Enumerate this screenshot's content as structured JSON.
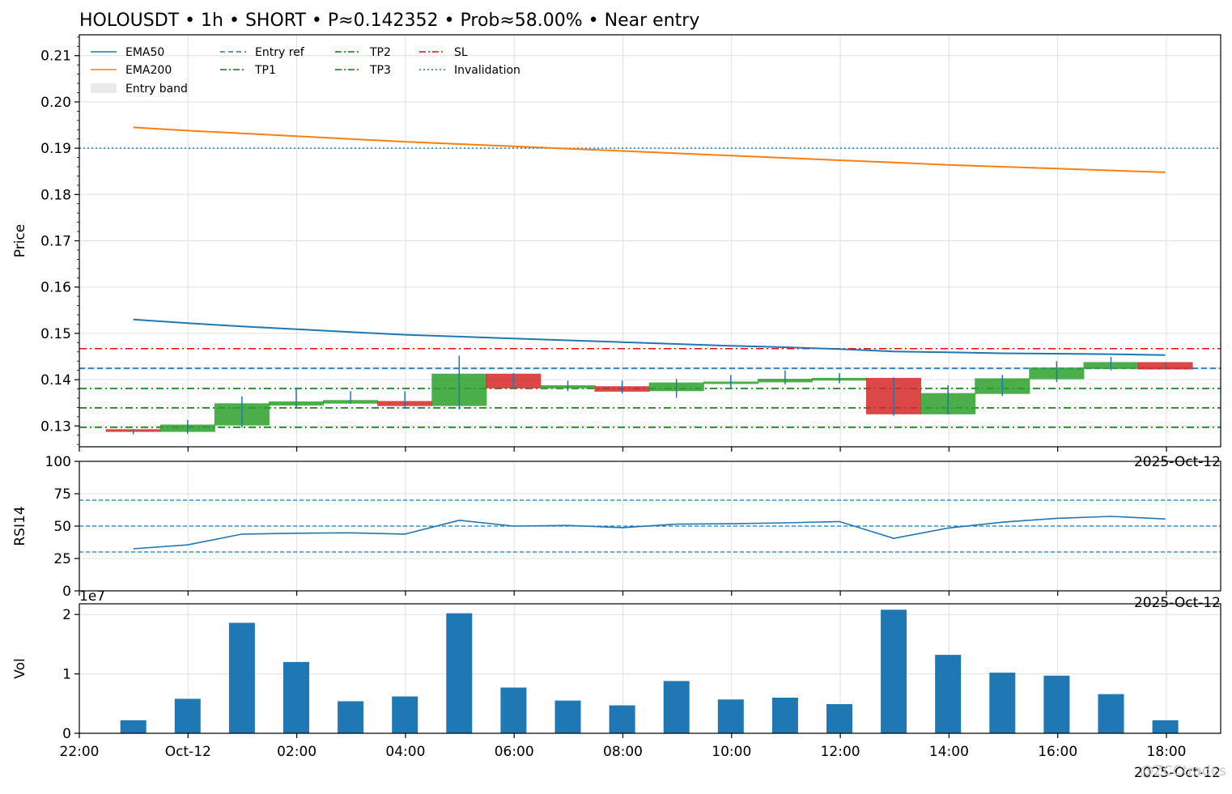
{
  "title": "HOLOUSDT • 1h • SHORT • P≈0.142352 • Prob≈58.00% • Near entry",
  "watermark": "@ZCCtrades",
  "colors": {
    "ema50": "#1f77b4",
    "ema200": "#ff7f0e",
    "up": "#2ca02c",
    "down": "#d62728",
    "entry": "#1f77b4",
    "tp": "#008000",
    "sl": "#ff0000",
    "band": "#d8d8d8",
    "vol": "#1f77b4",
    "rsi": "#1f77b4",
    "grid": "#e0e0e0"
  },
  "chart_data": [
    {
      "type": "candlestick",
      "ylabel": "Price",
      "ylim": [
        0.1255,
        0.2145
      ],
      "yticks": [
        "0.21",
        "0.20",
        "0.19",
        "0.18",
        "0.17",
        "0.16",
        "0.15",
        "0.14",
        "0.13"
      ],
      "ytick_values": [
        0.21,
        0.2,
        0.19,
        0.18,
        0.17,
        0.16,
        0.15,
        0.14,
        0.13
      ],
      "corner_label": "2025-Oct-12",
      "legend": [
        {
          "label": "EMA50",
          "style": "solid",
          "color": "#1f77b4"
        },
        {
          "label": "Entry ref",
          "style": "dashed",
          "color": "#1f77b4"
        },
        {
          "label": "TP2",
          "style": "dashdot",
          "color": "#008000"
        },
        {
          "label": "SL",
          "style": "dashdot",
          "color": "#ff0000"
        },
        {
          "label": "EMA200",
          "style": "solid",
          "color": "#ff7f0e"
        },
        {
          "label": "TP1",
          "style": "dashdot",
          "color": "#008000"
        },
        {
          "label": "TP3",
          "style": "dashdot",
          "color": "#008000"
        },
        {
          "label": "Invalidation",
          "style": "dotted",
          "color": "#1f77b4"
        },
        {
          "label": "Entry band",
          "style": "band",
          "color": "#d8d8d8"
        }
      ],
      "levels": {
        "entry_ref": 0.14245,
        "entry_band": [
          0.1421,
          0.1428
        ],
        "sl": 0.1467,
        "tp1": 0.1381,
        "tp2": 0.1339,
        "tp3": 0.1297,
        "invalidation": 0.19
      },
      "candles": [
        {
          "t": "23:00",
          "open": 0.1292,
          "high": 0.1293,
          "low": 0.1282,
          "close": 0.1288
        },
        {
          "t": "00:00",
          "open": 0.1288,
          "high": 0.1313,
          "low": 0.1283,
          "close": 0.1302
        },
        {
          "t": "01:00",
          "open": 0.1302,
          "high": 0.1364,
          "low": 0.1297,
          "close": 0.1348
        },
        {
          "t": "02:00",
          "open": 0.1345,
          "high": 0.1382,
          "low": 0.1339,
          "close": 0.1352
        },
        {
          "t": "03:00",
          "open": 0.1349,
          "high": 0.1375,
          "low": 0.1348,
          "close": 0.1355
        },
        {
          "t": "04:00",
          "open": 0.1353,
          "high": 0.1375,
          "low": 0.1341,
          "close": 0.1344
        },
        {
          "t": "05:00",
          "open": 0.1344,
          "high": 0.1452,
          "low": 0.1336,
          "close": 0.1412
        },
        {
          "t": "06:00",
          "open": 0.1412,
          "high": 0.1414,
          "low": 0.138,
          "close": 0.1382
        },
        {
          "t": "07:00",
          "open": 0.1382,
          "high": 0.1398,
          "low": 0.1375,
          "close": 0.1387
        },
        {
          "t": "08:00",
          "open": 0.1385,
          "high": 0.1398,
          "low": 0.137,
          "close": 0.1375
        },
        {
          "t": "09:00",
          "open": 0.1376,
          "high": 0.1402,
          "low": 0.1361,
          "close": 0.1393
        },
        {
          "t": "10:00",
          "open": 0.1392,
          "high": 0.141,
          "low": 0.138,
          "close": 0.1395
        },
        {
          "t": "11:00",
          "open": 0.1395,
          "high": 0.142,
          "low": 0.139,
          "close": 0.1401
        },
        {
          "t": "12:00",
          "open": 0.1399,
          "high": 0.1414,
          "low": 0.1392,
          "close": 0.1403
        },
        {
          "t": "13:00",
          "open": 0.1403,
          "high": 0.1405,
          "low": 0.1322,
          "close": 0.1326
        },
        {
          "t": "14:00",
          "open": 0.1326,
          "high": 0.1388,
          "low": 0.1325,
          "close": 0.137
        },
        {
          "t": "15:00",
          "open": 0.137,
          "high": 0.141,
          "low": 0.1365,
          "close": 0.1402
        },
        {
          "t": "16:00",
          "open": 0.1402,
          "high": 0.144,
          "low": 0.1395,
          "close": 0.1425
        },
        {
          "t": "17:00",
          "open": 0.1424,
          "high": 0.1449,
          "low": 0.142,
          "close": 0.1437
        },
        {
          "t": "18:00",
          "open": 0.1437,
          "high": 0.1437,
          "low": 0.1422,
          "close": 0.1423
        }
      ],
      "ema50": [
        0.153,
        0.1522,
        0.1515,
        0.1509,
        0.1503,
        0.1497,
        0.1493,
        0.1489,
        0.1485,
        0.1481,
        0.1477,
        0.1473,
        0.147,
        0.1466,
        0.1461,
        0.1459,
        0.1457,
        0.1456,
        0.1455,
        0.1453
      ],
      "ema200": [
        0.1945,
        0.1938,
        0.1932,
        0.1926,
        0.192,
        0.1914,
        0.1909,
        0.1904,
        0.1899,
        0.1894,
        0.1889,
        0.1884,
        0.1879,
        0.1874,
        0.1869,
        0.1864,
        0.186,
        0.1856,
        0.1852,
        0.1848
      ]
    },
    {
      "type": "line",
      "ylabel": "RSI14",
      "ylim": [
        0,
        100
      ],
      "yticks": [
        "0",
        "25",
        "50",
        "75",
        "100"
      ],
      "ytick_values": [
        0,
        25,
        50,
        75,
        100
      ],
      "corner_label": "2025-Oct-12",
      "guides": [
        30,
        50,
        70
      ],
      "values": [
        32.5,
        35.5,
        43.8,
        44.5,
        44.8,
        43.8,
        54.5,
        50.0,
        50.5,
        48.8,
        51.5,
        51.8,
        52.5,
        53.5,
        40.5,
        48.5,
        53.0,
        56.0,
        57.5,
        55.5
      ]
    },
    {
      "type": "bar",
      "ylabel": "Vol",
      "ylim": [
        0,
        2.18
      ],
      "yticks": [
        "0",
        "1",
        "2"
      ],
      "ytick_values": [
        0,
        1,
        2
      ],
      "scale_label": "1e7",
      "x_ticklabels": [
        "22:00",
        "Oct-12",
        "02:00",
        "04:00",
        "06:00",
        "08:00",
        "10:00",
        "12:00",
        "14:00",
        "16:00",
        "18:00"
      ],
      "x_corner_label": "2025-Oct-12",
      "values": [
        0.22,
        0.58,
        1.86,
        1.2,
        0.54,
        0.62,
        2.02,
        0.77,
        0.55,
        0.47,
        0.88,
        0.57,
        0.6,
        0.49,
        2.08,
        1.32,
        1.02,
        0.97,
        0.66,
        0.22
      ]
    }
  ]
}
